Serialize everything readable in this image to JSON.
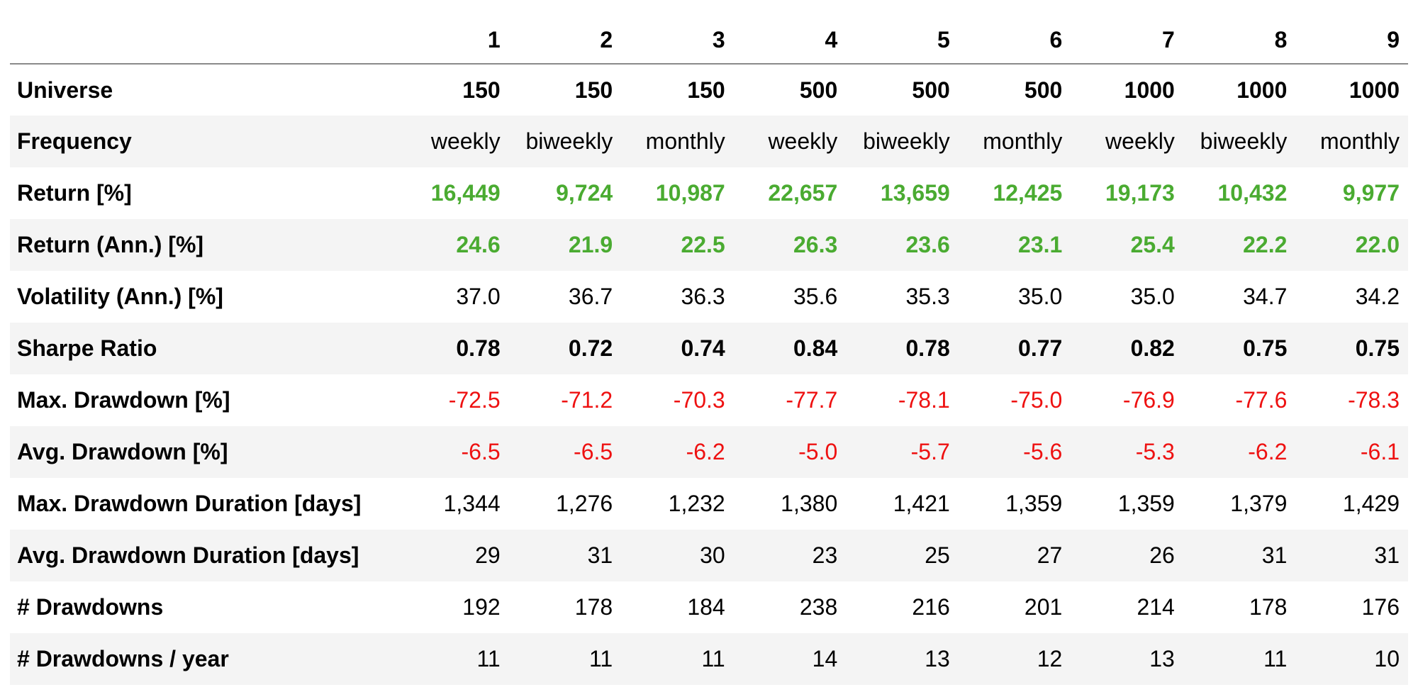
{
  "colors": {
    "positive": "#4aab31",
    "negative": "#ee1111",
    "stripe": "#f4f4f4"
  },
  "table": {
    "columns": [
      "1",
      "2",
      "3",
      "4",
      "5",
      "6",
      "7",
      "8",
      "9"
    ],
    "rows": [
      {
        "label": "Universe",
        "style": "bold",
        "values": [
          "150",
          "150",
          "150",
          "500",
          "500",
          "500",
          "1000",
          "1000",
          "1000"
        ]
      },
      {
        "label": "Frequency",
        "style": "plain",
        "values": [
          "weekly",
          "biweekly",
          "monthly",
          "weekly",
          "biweekly",
          "monthly",
          "weekly",
          "biweekly",
          "monthly"
        ]
      },
      {
        "label": "Return [%]",
        "style": "pos",
        "values": [
          "16,449",
          "9,724",
          "10,987",
          "22,657",
          "13,659",
          "12,425",
          "19,173",
          "10,432",
          "9,977"
        ]
      },
      {
        "label": "Return (Ann.) [%]",
        "style": "pos",
        "values": [
          "24.6",
          "21.9",
          "22.5",
          "26.3",
          "23.6",
          "23.1",
          "25.4",
          "22.2",
          "22.0"
        ]
      },
      {
        "label": "Volatility (Ann.) [%]",
        "style": "plain",
        "values": [
          "37.0",
          "36.7",
          "36.3",
          "35.6",
          "35.3",
          "35.0",
          "35.0",
          "34.7",
          "34.2"
        ]
      },
      {
        "label": "Sharpe Ratio",
        "style": "bold",
        "values": [
          "0.78",
          "0.72",
          "0.74",
          "0.84",
          "0.78",
          "0.77",
          "0.82",
          "0.75",
          "0.75"
        ]
      },
      {
        "label": "Max. Drawdown [%]",
        "style": "neg",
        "values": [
          "-72.5",
          "-71.2",
          "-70.3",
          "-77.7",
          "-78.1",
          "-75.0",
          "-76.9",
          "-77.6",
          "-78.3"
        ]
      },
      {
        "label": "Avg. Drawdown [%]",
        "style": "neg",
        "values": [
          "-6.5",
          "-6.5",
          "-6.2",
          "-5.0",
          "-5.7",
          "-5.6",
          "-5.3",
          "-6.2",
          "-6.1"
        ]
      },
      {
        "label": "Max. Drawdown Duration [days]",
        "style": "plain",
        "values": [
          "1,344",
          "1,276",
          "1,232",
          "1,380",
          "1,421",
          "1,359",
          "1,359",
          "1,379",
          "1,429"
        ]
      },
      {
        "label": "Avg. Drawdown Duration [days]",
        "style": "plain",
        "values": [
          "29",
          "31",
          "30",
          "23",
          "25",
          "27",
          "26",
          "31",
          "31"
        ]
      },
      {
        "label": "# Drawdowns",
        "style": "plain",
        "values": [
          "192",
          "178",
          "184",
          "238",
          "216",
          "201",
          "214",
          "178",
          "176"
        ]
      },
      {
        "label": "# Drawdowns / year",
        "style": "plain",
        "values": [
          "11",
          "11",
          "11",
          "14",
          "13",
          "12",
          "13",
          "11",
          "10"
        ]
      }
    ]
  }
}
